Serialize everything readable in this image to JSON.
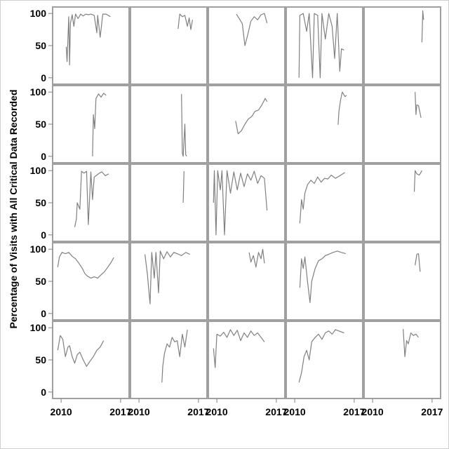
{
  "chart_data": {
    "type": "line",
    "layout": "5x5 panel grid",
    "ylabel": "Percentage of Visits with All Critical Data Recorded",
    "xlabel": "",
    "title": "",
    "x_ticks": [
      "2010",
      "2017"
    ],
    "y_ticks": [
      "0",
      "50",
      "100"
    ],
    "xlim": [
      2009,
      2018
    ],
    "ylim": [
      -10,
      110
    ],
    "line_color": "#808080",
    "panel_border_color": "#a0a0a0",
    "panels": [
      {
        "series": [
          [
            2010.6,
            48
          ],
          [
            2010.7,
            25
          ],
          [
            2010.9,
            95
          ],
          [
            2011.0,
            20
          ],
          [
            2011.1,
            85
          ],
          [
            2011.3,
            98
          ],
          [
            2011.5,
            80
          ],
          [
            2011.7,
            99
          ],
          [
            2012.0,
            92
          ],
          [
            2012.3,
            99
          ],
          [
            2012.6,
            96
          ],
          [
            2012.9,
            99
          ],
          [
            2013.2,
            98
          ],
          [
            2013.5,
            99
          ],
          [
            2013.9,
            97
          ],
          [
            2014.2,
            70
          ],
          [
            2014.3,
            97
          ],
          [
            2014.6,
            63
          ],
          [
            2014.9,
            99
          ],
          [
            2015.3,
            99
          ],
          [
            2015.8,
            95
          ]
        ]
      },
      {
        "series": [
          [
            2014.6,
            76
          ],
          [
            2014.8,
            99
          ],
          [
            2015.1,
            95
          ],
          [
            2015.4,
            97
          ],
          [
            2015.7,
            80
          ],
          [
            2015.9,
            93
          ],
          [
            2016.1,
            75
          ],
          [
            2016.3,
            90
          ]
        ]
      },
      {
        "series": [
          [
            2012.3,
            99
          ],
          [
            2013.0,
            84
          ],
          [
            2013.3,
            50
          ],
          [
            2013.6,
            65
          ],
          [
            2014.0,
            88
          ],
          [
            2014.4,
            95
          ],
          [
            2014.8,
            90
          ],
          [
            2015.2,
            98
          ],
          [
            2015.6,
            100
          ],
          [
            2015.9,
            85
          ]
        ]
      },
      {
        "series": [
          [
            2010.5,
            0
          ],
          [
            2010.6,
            97
          ],
          [
            2011.0,
            100
          ],
          [
            2011.4,
            72
          ],
          [
            2011.7,
            100
          ],
          [
            2012.1,
            0
          ],
          [
            2012.3,
            100
          ],
          [
            2012.7,
            97
          ],
          [
            2013.0,
            0
          ],
          [
            2013.2,
            100
          ],
          [
            2013.6,
            60
          ],
          [
            2014.0,
            100
          ],
          [
            2014.4,
            80
          ],
          [
            2014.7,
            30
          ],
          [
            2015.0,
            100
          ],
          [
            2015.3,
            10
          ],
          [
            2015.5,
            45
          ],
          [
            2015.8,
            43
          ]
        ]
      },
      {
        "series": [
          [
            2015.8,
            55
          ],
          [
            2015.9,
            104
          ],
          [
            2016.0,
            90
          ]
        ]
      },
      {
        "series": [
          [
            2013.7,
            0
          ],
          [
            2013.8,
            65
          ],
          [
            2013.95,
            43
          ],
          [
            2014.1,
            90
          ],
          [
            2014.4,
            97
          ],
          [
            2014.7,
            92
          ],
          [
            2015.0,
            98
          ],
          [
            2015.3,
            95
          ]
        ]
      },
      {
        "series": [
          [
            2015.0,
            97
          ],
          [
            2015.1,
            5
          ],
          [
            2015.2,
            0
          ],
          [
            2015.4,
            50
          ],
          [
            2015.5,
            3
          ],
          [
            2015.6,
            0
          ]
        ]
      },
      {
        "series": [
          [
            2012.2,
            55
          ],
          [
            2012.5,
            35
          ],
          [
            2012.9,
            40
          ],
          [
            2013.3,
            50
          ],
          [
            2013.7,
            58
          ],
          [
            2014.1,
            62
          ],
          [
            2014.5,
            70
          ],
          [
            2014.9,
            72
          ],
          [
            2015.3,
            80
          ],
          [
            2015.7,
            90
          ],
          [
            2015.9,
            85
          ]
        ]
      },
      {
        "series": [
          [
            2015.1,
            49
          ],
          [
            2015.2,
            70
          ],
          [
            2015.4,
            88
          ],
          [
            2015.6,
            100
          ],
          [
            2015.9,
            93
          ],
          [
            2016.1,
            95
          ]
        ]
      },
      {
        "series": [
          [
            2015.0,
            100
          ],
          [
            2015.1,
            65
          ],
          [
            2015.2,
            80
          ],
          [
            2015.4,
            79
          ],
          [
            2015.7,
            60
          ]
        ]
      },
      {
        "series": [
          [
            2011.6,
            12
          ],
          [
            2011.8,
            25
          ],
          [
            2011.9,
            50
          ],
          [
            2012.2,
            40
          ],
          [
            2012.4,
            99
          ],
          [
            2012.7,
            96
          ],
          [
            2013.0,
            99
          ],
          [
            2013.2,
            16
          ],
          [
            2013.5,
            98
          ],
          [
            2013.7,
            55
          ],
          [
            2013.9,
            90
          ],
          [
            2014.2,
            93
          ],
          [
            2014.5,
            96
          ],
          [
            2014.8,
            98
          ],
          [
            2015.2,
            92
          ],
          [
            2015.6,
            95
          ]
        ]
      },
      {
        "series": [
          [
            2015.2,
            50
          ],
          [
            2015.3,
            99
          ]
        ]
      },
      {
        "series": [
          [
            2009.6,
            50
          ],
          [
            2009.7,
            100
          ],
          [
            2009.9,
            0
          ],
          [
            2010.1,
            100
          ],
          [
            2010.4,
            70
          ],
          [
            2010.6,
            100
          ],
          [
            2010.9,
            0
          ],
          [
            2011.2,
            100
          ],
          [
            2011.6,
            65
          ],
          [
            2012.0,
            98
          ],
          [
            2012.4,
            70
          ],
          [
            2012.8,
            96
          ],
          [
            2013.2,
            75
          ],
          [
            2013.6,
            95
          ],
          [
            2014.0,
            85
          ],
          [
            2014.4,
            99
          ],
          [
            2014.8,
            80
          ],
          [
            2015.2,
            92
          ],
          [
            2015.6,
            88
          ],
          [
            2015.9,
            38
          ]
        ]
      },
      {
        "series": [
          [
            2010.6,
            18
          ],
          [
            2010.8,
            55
          ],
          [
            2011.0,
            40
          ],
          [
            2011.2,
            65
          ],
          [
            2011.5,
            78
          ],
          [
            2011.9,
            85
          ],
          [
            2012.3,
            80
          ],
          [
            2012.7,
            90
          ],
          [
            2013.1,
            82
          ],
          [
            2013.5,
            88
          ],
          [
            2013.9,
            87
          ],
          [
            2014.3,
            93
          ],
          [
            2014.8,
            88
          ],
          [
            2015.3,
            92
          ],
          [
            2015.9,
            97
          ]
        ]
      },
      {
        "series": [
          [
            2014.9,
            67
          ],
          [
            2015.0,
            100
          ],
          [
            2015.2,
            95
          ],
          [
            2015.5,
            93
          ],
          [
            2015.8,
            100
          ]
        ]
      },
      {
        "series": [
          [
            2009.6,
            72
          ],
          [
            2009.8,
            88
          ],
          [
            2010.1,
            95
          ],
          [
            2010.5,
            93
          ],
          [
            2010.9,
            95
          ],
          [
            2011.3,
            89
          ],
          [
            2011.7,
            85
          ],
          [
            2012.1,
            78
          ],
          [
            2012.5,
            70
          ],
          [
            2012.8,
            62
          ],
          [
            2013.1,
            58
          ],
          [
            2013.5,
            55
          ],
          [
            2013.9,
            57
          ],
          [
            2014.3,
            55
          ],
          [
            2014.7,
            60
          ],
          [
            2015.1,
            65
          ],
          [
            2015.5,
            72
          ],
          [
            2015.9,
            80
          ],
          [
            2016.2,
            87
          ]
        ]
      },
      {
        "series": [
          [
            2010.7,
            92
          ],
          [
            2011.0,
            60
          ],
          [
            2011.2,
            30
          ],
          [
            2011.3,
            15
          ],
          [
            2011.5,
            95
          ],
          [
            2011.8,
            55
          ],
          [
            2012.0,
            95
          ],
          [
            2012.3,
            32
          ],
          [
            2012.5,
            97
          ],
          [
            2012.9,
            85
          ],
          [
            2013.3,
            96
          ],
          [
            2013.7,
            88
          ],
          [
            2014.1,
            95
          ],
          [
            2014.5,
            93
          ],
          [
            2015.0,
            90
          ],
          [
            2015.5,
            95
          ],
          [
            2016.0,
            92
          ]
        ]
      },
      {
        "series": [
          [
            2013.8,
            95
          ],
          [
            2014.0,
            80
          ],
          [
            2014.3,
            90
          ],
          [
            2014.6,
            72
          ],
          [
            2014.9,
            95
          ],
          [
            2015.2,
            85
          ],
          [
            2015.4,
            100
          ],
          [
            2015.6,
            78
          ]
        ]
      },
      {
        "series": [
          [
            2010.6,
            40
          ],
          [
            2010.8,
            85
          ],
          [
            2011.0,
            70
          ],
          [
            2011.2,
            88
          ],
          [
            2011.5,
            50
          ],
          [
            2011.7,
            28
          ],
          [
            2011.8,
            17
          ],
          [
            2012.0,
            50
          ],
          [
            2012.4,
            70
          ],
          [
            2012.8,
            82
          ],
          [
            2013.2,
            85
          ],
          [
            2013.6,
            90
          ],
          [
            2014.0,
            92
          ],
          [
            2014.5,
            95
          ],
          [
            2015.0,
            97
          ],
          [
            2015.5,
            95
          ],
          [
            2016.0,
            93
          ]
        ]
      },
      {
        "series": [
          [
            2015.0,
            75
          ],
          [
            2015.2,
            92
          ],
          [
            2015.4,
            93
          ],
          [
            2015.6,
            65
          ]
        ]
      },
      {
        "series": [
          [
            2009.6,
            65
          ],
          [
            2009.9,
            88
          ],
          [
            2010.2,
            82
          ],
          [
            2010.5,
            55
          ],
          [
            2010.8,
            70
          ],
          [
            2011.0,
            72
          ],
          [
            2011.3,
            55
          ],
          [
            2011.6,
            45
          ],
          [
            2011.9,
            58
          ],
          [
            2012.2,
            62
          ],
          [
            2012.6,
            50
          ],
          [
            2013.0,
            40
          ],
          [
            2013.4,
            48
          ],
          [
            2013.8,
            55
          ],
          [
            2014.2,
            65
          ],
          [
            2014.6,
            70
          ],
          [
            2015.0,
            80
          ]
        ]
      },
      {
        "series": [
          [
            2012.7,
            15
          ],
          [
            2012.8,
            40
          ],
          [
            2013.0,
            60
          ],
          [
            2013.3,
            75
          ],
          [
            2013.6,
            70
          ],
          [
            2013.9,
            85
          ],
          [
            2014.2,
            78
          ],
          [
            2014.5,
            80
          ],
          [
            2014.8,
            55
          ],
          [
            2015.1,
            90
          ],
          [
            2015.4,
            70
          ],
          [
            2015.7,
            97
          ]
        ]
      },
      {
        "series": [
          [
            2009.6,
            68
          ],
          [
            2009.8,
            38
          ],
          [
            2010.0,
            90
          ],
          [
            2010.4,
            87
          ],
          [
            2010.8,
            93
          ],
          [
            2011.2,
            85
          ],
          [
            2011.6,
            97
          ],
          [
            2012.0,
            88
          ],
          [
            2012.4,
            96
          ],
          [
            2012.8,
            80
          ],
          [
            2013.2,
            92
          ],
          [
            2013.6,
            85
          ],
          [
            2014.0,
            95
          ],
          [
            2014.4,
            88
          ],
          [
            2014.8,
            92
          ],
          [
            2015.2,
            85
          ],
          [
            2015.6,
            78
          ]
        ]
      },
      {
        "series": [
          [
            2010.5,
            15
          ],
          [
            2010.8,
            30
          ],
          [
            2011.1,
            55
          ],
          [
            2011.4,
            65
          ],
          [
            2011.7,
            50
          ],
          [
            2012.0,
            78
          ],
          [
            2012.4,
            85
          ],
          [
            2012.8,
            90
          ],
          [
            2013.2,
            82
          ],
          [
            2013.6,
            92
          ],
          [
            2014.0,
            95
          ],
          [
            2014.4,
            90
          ],
          [
            2014.8,
            97
          ],
          [
            2015.2,
            95
          ],
          [
            2015.8,
            92
          ]
        ]
      },
      {
        "series": [
          [
            2013.6,
            98
          ],
          [
            2013.8,
            55
          ],
          [
            2014.0,
            80
          ],
          [
            2014.2,
            75
          ],
          [
            2014.5,
            92
          ],
          [
            2014.8,
            88
          ],
          [
            2015.1,
            90
          ],
          [
            2015.4,
            85
          ]
        ]
      }
    ]
  }
}
